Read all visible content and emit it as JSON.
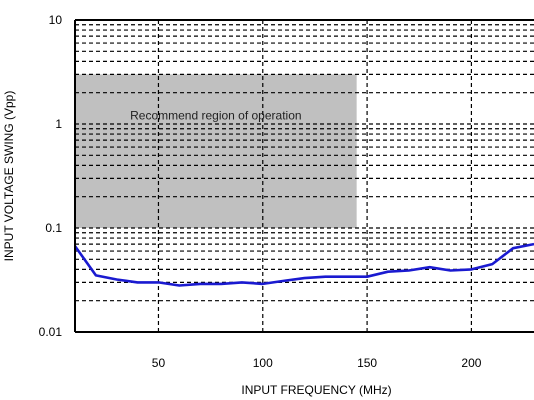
{
  "chart_data": {
    "type": "line",
    "title": "",
    "xlabel": "INPUT FREQUENCY (MHz)",
    "ylabel": "INPUT VOLTAGE SWING (Vpp)",
    "xlim": [
      10,
      230
    ],
    "ylim": [
      0.01,
      10
    ],
    "y_scale": "log",
    "grid": true,
    "grid_style": "dashed",
    "x_ticks": [
      50,
      100,
      150,
      200
    ],
    "x_tick_labels": [
      "50",
      "100",
      "150",
      "200"
    ],
    "y_ticks": [
      0.01,
      0.1,
      1,
      10
    ],
    "y_tick_labels": [
      "0.01",
      "0.1",
      "1",
      "10"
    ],
    "region": {
      "label": "Recommend region of operation",
      "x": [
        10,
        145
      ],
      "y": [
        0.1,
        3
      ],
      "color": "#c0c0c0"
    },
    "series": [
      {
        "color": "#1a1ad0",
        "x": [
          10,
          20,
          30,
          40,
          50,
          60,
          70,
          80,
          90,
          100,
          110,
          120,
          130,
          140,
          150,
          160,
          170,
          180,
          190,
          200,
          210,
          220,
          230
        ],
        "values": [
          0.067,
          0.035,
          0.032,
          0.03,
          0.03,
          0.028,
          0.029,
          0.029,
          0.03,
          0.029,
          0.031,
          0.033,
          0.034,
          0.034,
          0.034,
          0.038,
          0.039,
          0.042,
          0.039,
          0.04,
          0.045,
          0.064,
          0.07
        ]
      }
    ]
  }
}
